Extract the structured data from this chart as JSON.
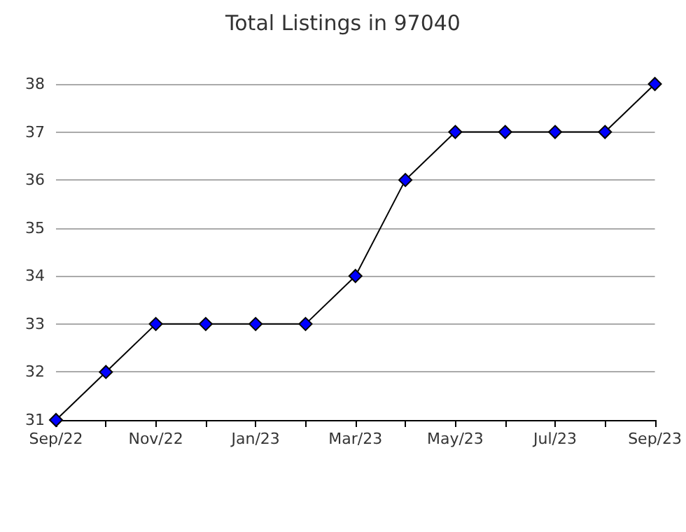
{
  "chart_data": {
    "type": "line",
    "title": "Total Listings in 97040",
    "categories": [
      "Sep/22",
      null,
      "Nov/22",
      null,
      "Jan/23",
      null,
      "Mar/23",
      null,
      "May/23",
      null,
      "Jul/23",
      null,
      "Sep/23"
    ],
    "series": [
      {
        "color": "#0000ff",
        "values": [
          31,
          32,
          33,
          33,
          33,
          33,
          34,
          36,
          37,
          37,
          37,
          37,
          38
        ]
      }
    ],
    "ylim": [
      31,
      38
    ],
    "yticks": [
      31,
      32,
      33,
      34,
      35,
      36,
      37,
      38
    ],
    "grid": "y",
    "marker": "diamond",
    "line_style": "solid"
  }
}
